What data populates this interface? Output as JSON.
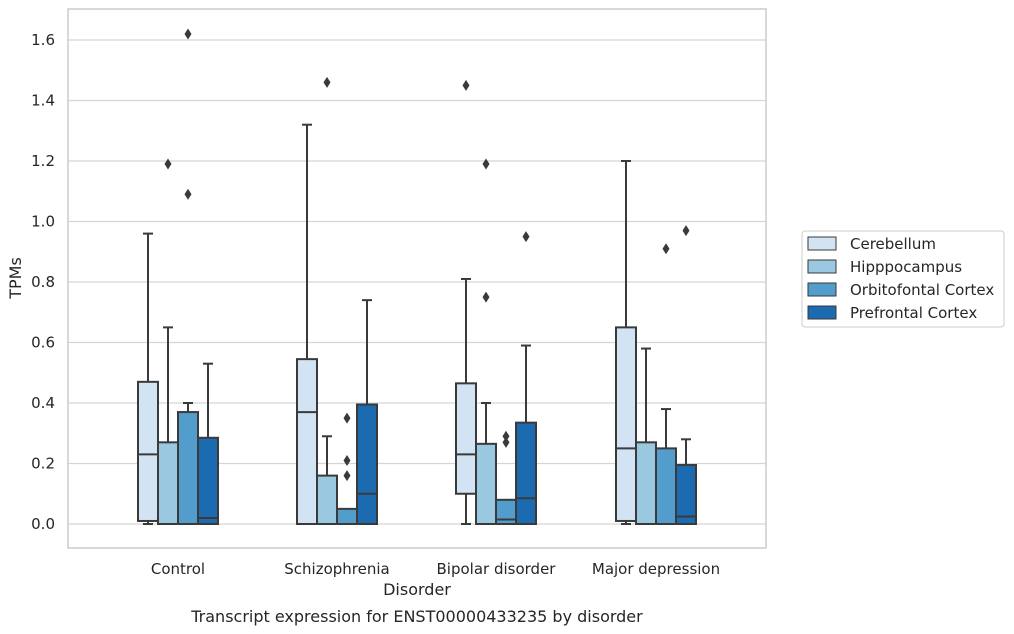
{
  "chart_data": {
    "type": "box",
    "title": "",
    "caption": "Transcript expression for ENST00000433235 by disorder",
    "xlabel": "Disorder",
    "ylabel": "TPMs",
    "ylim": [
      -0.08,
      1.7
    ],
    "yticks": [
      "0.0",
      "0.2",
      "0.4",
      "0.6",
      "0.8",
      "1.0",
      "1.2",
      "1.4",
      "1.6"
    ],
    "grid": true,
    "legend_position": "right",
    "categories": [
      "Control",
      "Schizophrenia",
      "Bipolar disorder",
      "Major depression"
    ],
    "series": [
      {
        "name": "Cerebellum",
        "color": "#d2e3f3",
        "boxes": [
          {
            "min": 0.0,
            "q1": 0.01,
            "median": 0.23,
            "q3": 0.47,
            "max": 0.96,
            "outliers": []
          },
          {
            "min": 0.0,
            "q1": 0.0,
            "median": 0.37,
            "q3": 0.545,
            "max": 1.32,
            "outliers": []
          },
          {
            "min": 0.0,
            "q1": 0.1,
            "median": 0.23,
            "q3": 0.465,
            "max": 0.81,
            "outliers": [
              1.45
            ]
          },
          {
            "min": 0.0,
            "q1": 0.01,
            "median": 0.25,
            "q3": 0.65,
            "max": 1.2,
            "outliers": []
          }
        ]
      },
      {
        "name": "Hipppocampus",
        "color": "#9ac8e0",
        "boxes": [
          {
            "min": 0.0,
            "q1": 0.0,
            "median": 0.0,
            "q3": 0.27,
            "max": 0.65,
            "outliers": [
              1.19
            ]
          },
          {
            "min": 0.0,
            "q1": 0.0,
            "median": 0.0,
            "q3": 0.16,
            "max": 0.29,
            "outliers": [
              1.46
            ]
          },
          {
            "min": 0.0,
            "q1": 0.0,
            "median": 0.0,
            "q3": 0.265,
            "max": 0.4,
            "outliers": [
              0.75,
              1.19
            ]
          },
          {
            "min": 0.0,
            "q1": 0.0,
            "median": 0.0,
            "q3": 0.27,
            "max": 0.58,
            "outliers": []
          }
        ]
      },
      {
        "name": "Orbitofontal Cortex",
        "color": "#529dcc",
        "boxes": [
          {
            "min": 0.0,
            "q1": 0.0,
            "median": 0.0,
            "q3": 0.37,
            "max": 0.4,
            "outliers": [
              1.09,
              1.62
            ]
          },
          {
            "min": 0.0,
            "q1": 0.0,
            "median": 0.0,
            "q3": 0.05,
            "max": 0.05,
            "outliers": [
              0.16,
              0.21,
              0.35
            ]
          },
          {
            "min": 0.0,
            "q1": 0.0,
            "median": 0.015,
            "q3": 0.08,
            "max": 0.08,
            "outliers": [
              0.27,
              0.29
            ]
          },
          {
            "min": 0.0,
            "q1": 0.0,
            "median": 0.0,
            "q3": 0.25,
            "max": 0.38,
            "outliers": [
              0.91
            ]
          }
        ]
      },
      {
        "name": "Prefrontal Cortex",
        "color": "#1c6aaf",
        "boxes": [
          {
            "min": 0.0,
            "q1": 0.0,
            "median": 0.02,
            "q3": 0.285,
            "max": 0.53,
            "outliers": []
          },
          {
            "min": 0.0,
            "q1": 0.0,
            "median": 0.1,
            "q3": 0.395,
            "max": 0.74,
            "outliers": []
          },
          {
            "min": 0.0,
            "q1": 0.0,
            "median": 0.085,
            "q3": 0.335,
            "max": 0.59,
            "outliers": [
              0.95
            ]
          },
          {
            "min": 0.0,
            "q1": 0.0,
            "median": 0.025,
            "q3": 0.195,
            "max": 0.28,
            "outliers": [
              0.97
            ]
          }
        ]
      }
    ]
  }
}
